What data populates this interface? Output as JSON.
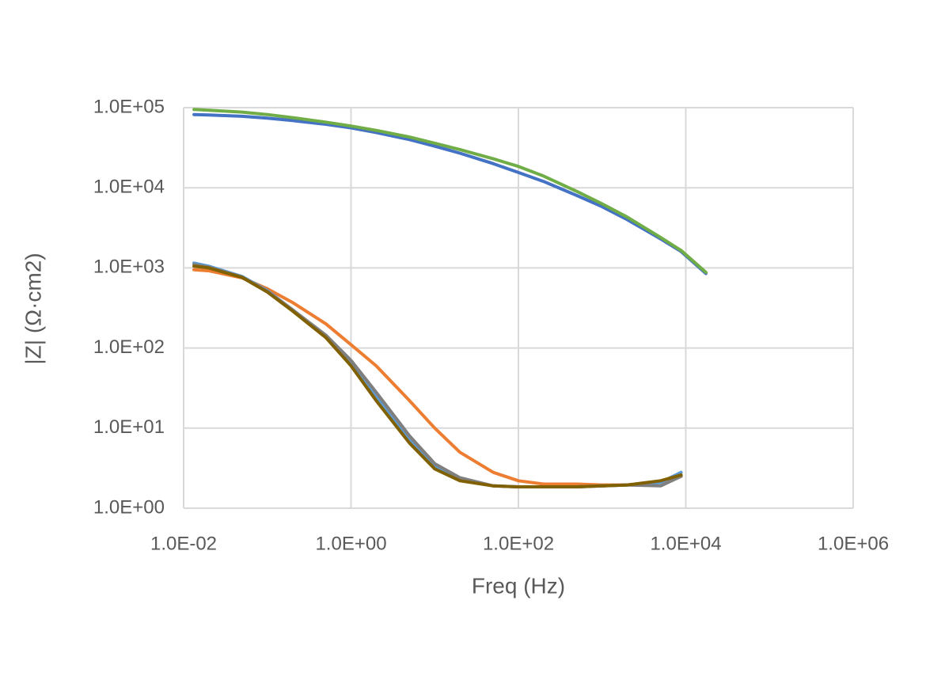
{
  "chart_data": {
    "type": "line",
    "x_label": "Freq (Hz)",
    "y_label": "|Z| (Ω·cm2)",
    "xscale": "log",
    "yscale": "log",
    "grid": true,
    "xlim": [
      0.01,
      1000000
    ],
    "ylim": [
      1,
      100000
    ],
    "xticks": [
      {
        "value": 0.01,
        "label": "1.0E-02"
      },
      {
        "value": 1,
        "label": "1.0E+00"
      },
      {
        "value": 100,
        "label": "1.0E+02"
      },
      {
        "value": 10000,
        "label": "1.0E+04"
      },
      {
        "value": 1000000,
        "label": "1.0E+06"
      }
    ],
    "yticks": [
      {
        "value": 1,
        "label": "1.0E+00"
      },
      {
        "value": 10,
        "label": "1.0E+01"
      },
      {
        "value": 100,
        "label": "1.0E+02"
      },
      {
        "value": 1000,
        "label": "1.0E+03"
      },
      {
        "value": 10000,
        "label": "1.0E+04"
      },
      {
        "value": 100000,
        "label": "1.0E+05"
      }
    ],
    "x": [
      0.0133,
      0.02,
      0.05,
      0.1,
      0.2,
      0.5,
      1,
      2,
      5,
      10,
      20,
      50,
      100,
      200,
      500,
      1000,
      2000,
      5000,
      8800,
      17400
    ],
    "series": [
      {
        "color": "#4472c4",
        "values": [
          82000,
          81000,
          78000,
          74000,
          69000,
          62000,
          56000,
          49000,
          40000,
          33000,
          27000,
          20000,
          15500,
          12000,
          8000,
          5800,
          4000,
          2300,
          1600,
          850
        ]
      },
      {
        "color": "#70ad47",
        "values": [
          95000,
          93000,
          88000,
          82000,
          75000,
          66000,
          59000,
          52000,
          43000,
          36000,
          30000,
          23000,
          18500,
          14000,
          9000,
          6300,
          4300,
          2400,
          1650,
          880
        ]
      },
      {
        "color": "#ed7d31",
        "values": [
          950,
          920,
          750,
          550,
          370,
          200,
          110,
          60,
          22,
          10,
          5,
          2.8,
          2.2,
          2.0,
          2.0,
          1.95,
          1.95,
          2.1,
          2.5,
          null
        ]
      },
      {
        "color": "#5b9bd5",
        "values": [
          1150,
          1050,
          780,
          520,
          300,
          140,
          65,
          25,
          7,
          3.3,
          2.3,
          1.9,
          1.85,
          1.85,
          1.85,
          1.9,
          1.95,
          2.1,
          2.8,
          null
        ]
      },
      {
        "color": "#7f7f7f",
        "values": [
          1100,
          1020,
          770,
          510,
          300,
          145,
          70,
          28,
          8,
          3.6,
          2.4,
          1.9,
          1.85,
          1.85,
          1.85,
          1.9,
          1.95,
          1.9,
          2.5,
          null
        ]
      },
      {
        "color": "#806000",
        "values": [
          1050,
          1000,
          760,
          500,
          290,
          135,
          60,
          22,
          6.5,
          3.1,
          2.2,
          1.9,
          1.85,
          1.85,
          1.85,
          1.9,
          1.95,
          2.2,
          2.6,
          null
        ]
      }
    ]
  }
}
